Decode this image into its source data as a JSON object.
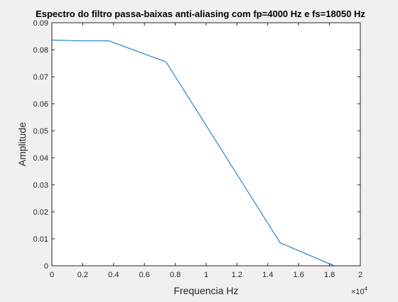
{
  "window": {
    "background": "#f0f0f0"
  },
  "chart_data": {
    "type": "line",
    "title": "Espectro do filtro passa-baixas anti-aliasing com fp=4000 Hz e fs=18050 Hz",
    "xlabel": "Frequencia Hz",
    "ylabel": "Amplitude",
    "x_exponent_label": "×10",
    "x_exponent_power": "4",
    "xlim": [
      0,
      20000
    ],
    "ylim": [
      0,
      0.09
    ],
    "x_ticks": [
      0,
      2000,
      4000,
      6000,
      8000,
      10000,
      12000,
      14000,
      16000,
      18000,
      20000
    ],
    "x_tick_labels": [
      "0",
      "0.2",
      "0.4",
      "0.6",
      "0.8",
      "1",
      "1.2",
      "1.4",
      "1.6",
      "1.8",
      "2"
    ],
    "y_ticks": [
      0,
      0.01,
      0.02,
      0.03,
      0.04,
      0.05,
      0.06,
      0.07,
      0.08,
      0.09
    ],
    "y_tick_labels": [
      "0",
      "0.01",
      "0.02",
      "0.03",
      "0.04",
      "0.05",
      "0.06",
      "0.07",
      "0.08",
      "0.09"
    ],
    "grid": false,
    "series": [
      {
        "color": "#0072bd",
        "x": [
          0,
          1800,
          3700,
          7400,
          14800,
          18300
        ],
        "y": [
          0.0836,
          0.0833,
          0.0833,
          0.0755,
          0.0085,
          0.0
        ]
      }
    ]
  }
}
